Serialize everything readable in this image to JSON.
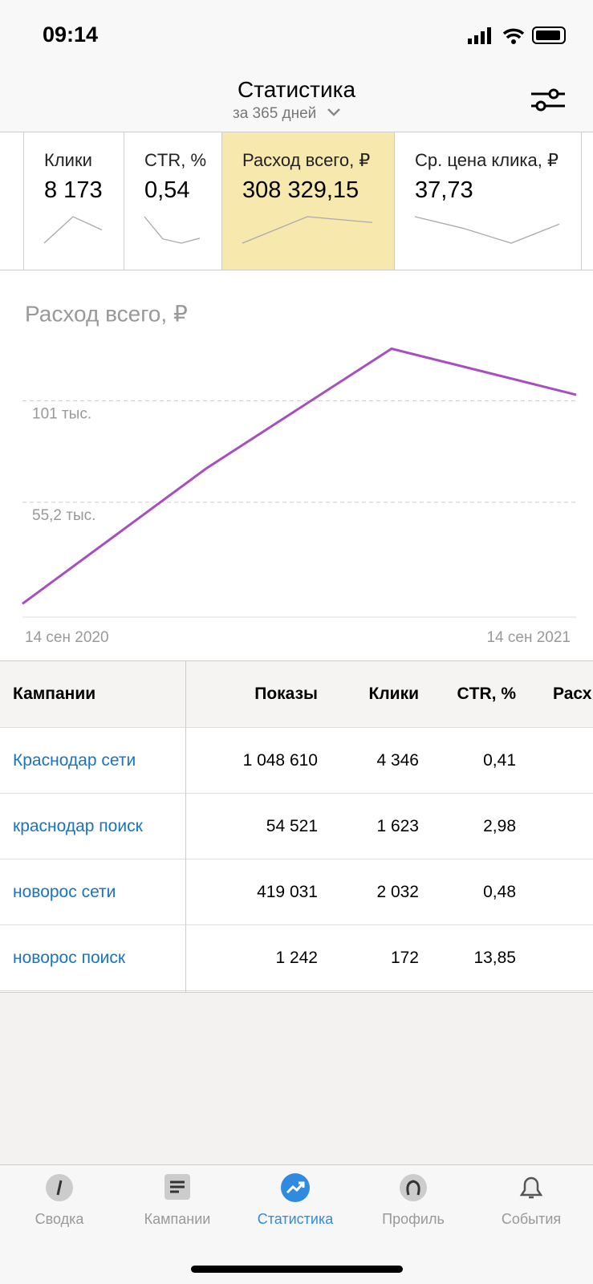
{
  "status_bar": {
    "time": "09:14"
  },
  "header": {
    "title": "Статистика",
    "subtitle": "за 365 дней"
  },
  "metrics": [
    {
      "label": "Клики",
      "value": "8 173",
      "trend": [
        0,
        32,
        16
      ]
    },
    {
      "label": "CTR, %",
      "value": "0,54",
      "trend": [
        32,
        5,
        0,
        6
      ]
    },
    {
      "label": "Расход всего, ₽",
      "value": "308 329,15",
      "trend": [
        0,
        32,
        25
      ]
    },
    {
      "label": "Ср. цена клика, ₽",
      "value": "37,73",
      "trend": [
        32,
        18,
        0,
        23
      ]
    }
  ],
  "selected_metric": 2,
  "chart_data": {
    "type": "line",
    "title": "Расход всего, ₽",
    "categories": [
      "14 сен 2020",
      null,
      null,
      "14 сен 2021"
    ],
    "values": [
      9400,
      70700,
      124500,
      103700
    ],
    "color": "#a64fbe",
    "ylim": [
      3350,
      129400
    ],
    "yticks": [
      {
        "value": 55200,
        "label": "55,2 тыс."
      },
      {
        "value": 101000,
        "label": "101 тыс."
      }
    ],
    "grid": true
  },
  "table": {
    "columns": [
      "Кампании",
      "Показы",
      "Клики",
      "CTR, %",
      "Расх"
    ],
    "rows": [
      [
        "Краснодар сети",
        "1 048 610",
        "4 346",
        "0,41"
      ],
      [
        "краснодар поиск",
        "54 521",
        "1 623",
        "2,98"
      ],
      [
        "новорос сети",
        "419 031",
        "2 032",
        "0,48"
      ],
      [
        "новорос поиск",
        "1 242",
        "172",
        "13,85"
      ]
    ]
  },
  "nav": {
    "items": [
      "Сводка",
      "Кампании",
      "Статистика",
      "Профиль",
      "События"
    ],
    "active": 2
  }
}
